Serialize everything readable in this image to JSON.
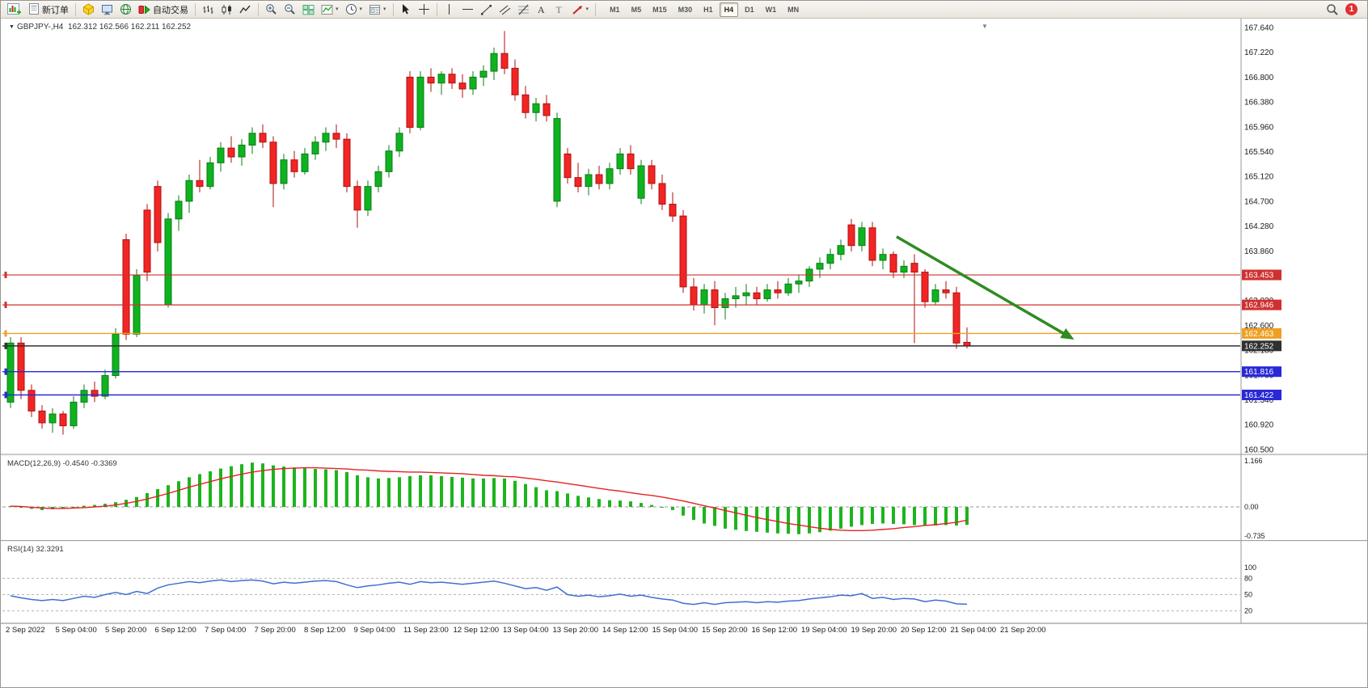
{
  "toolbar": {
    "new_order_label": "新订单",
    "autotrading_label": "自动交易",
    "timeframes": [
      "M1",
      "M5",
      "M15",
      "M30",
      "H1",
      "H4",
      "D1",
      "W1",
      "MN"
    ],
    "active_timeframe": "H4",
    "notification_count": "1"
  },
  "chart_header": {
    "symbol": "GBPJPY-,H4",
    "ohlc": "162.312 162.566 162.211 162.252"
  },
  "indicators": {
    "macd_name": "MACD(12,26,9)",
    "macd_values": "-0.4540 -0.3369",
    "rsi_name": "RSI(14)",
    "rsi_value": "32.3291"
  },
  "colors": {
    "bull": "#0eb31f",
    "bull_stroke": "#0a7d15",
    "bear": "#f22525",
    "bear_stroke": "#ae1010",
    "macd_hist": "#1db41d",
    "macd_signal": "#e42222",
    "rsi_line": "#3f6fd1",
    "arrow": "#2f8b22",
    "grid_text": "#1a1a1a",
    "level_dash": "#9a9a9a"
  },
  "chart_data": {
    "type": "candlestick",
    "symbol": "GBPJPY-",
    "timeframe": "H4",
    "price_axis": {
      "min": 160.5,
      "max": 167.64,
      "step": 0.42,
      "labels": [
        "167.640",
        "167.220",
        "166.800",
        "166.380",
        "165.960",
        "165.540",
        "165.120",
        "164.700",
        "164.280",
        "163.860",
        "163.440",
        "163.020",
        "162.600",
        "162.180",
        "161.760",
        "161.340",
        "160.920",
        "160.500"
      ]
    },
    "time_labels": [
      "2 Sep 2022",
      "5 Sep 04:00",
      "5 Sep 20:00",
      "6 Sep 12:00",
      "7 Sep 04:00",
      "7 Sep 20:00",
      "8 Sep 12:00",
      "9 Sep 04:00",
      "11 Sep 23:00",
      "12 Sep 12:00",
      "13 Sep 04:00",
      "13 Sep 20:00",
      "14 Sep 12:00",
      "15 Sep 04:00",
      "15 Sep 20:00",
      "16 Sep 12:00",
      "19 Sep 04:00",
      "19 Sep 20:00",
      "20 Sep 12:00",
      "21 Sep 04:00",
      "21 Sep 20:00"
    ],
    "candles": [
      [
        161.3,
        162.4,
        161.2,
        162.3
      ],
      [
        162.3,
        162.4,
        161.35,
        161.5
      ],
      [
        161.5,
        161.6,
        161.05,
        161.15
      ],
      [
        161.15,
        161.25,
        160.85,
        160.95
      ],
      [
        160.95,
        161.2,
        160.78,
        161.1
      ],
      [
        161.1,
        161.15,
        160.75,
        160.9
      ],
      [
        160.9,
        161.4,
        160.85,
        161.3
      ],
      [
        161.3,
        161.6,
        161.2,
        161.5
      ],
      [
        161.5,
        161.65,
        161.3,
        161.4
      ],
      [
        161.4,
        161.85,
        161.35,
        161.75
      ],
      [
        161.75,
        162.55,
        161.7,
        162.45
      ],
      [
        164.05,
        164.15,
        162.35,
        162.45
      ],
      [
        162.45,
        163.55,
        162.4,
        163.45
      ],
      [
        164.55,
        164.65,
        163.35,
        163.5
      ],
      [
        164.95,
        165.05,
        163.85,
        164.0
      ],
      [
        162.95,
        164.5,
        162.9,
        164.4
      ],
      [
        164.4,
        164.8,
        164.2,
        164.7
      ],
      [
        164.7,
        165.15,
        164.5,
        165.05
      ],
      [
        165.05,
        165.4,
        164.85,
        164.95
      ],
      [
        164.95,
        165.45,
        164.9,
        165.35
      ],
      [
        165.35,
        165.7,
        165.2,
        165.6
      ],
      [
        165.6,
        165.8,
        165.35,
        165.45
      ],
      [
        165.45,
        165.75,
        165.3,
        165.65
      ],
      [
        165.65,
        165.95,
        165.5,
        165.85
      ],
      [
        165.85,
        166.0,
        165.6,
        165.7
      ],
      [
        165.7,
        165.8,
        164.6,
        165.0
      ],
      [
        165.0,
        165.5,
        164.9,
        165.4
      ],
      [
        165.4,
        165.55,
        165.1,
        165.2
      ],
      [
        165.2,
        165.6,
        165.15,
        165.5
      ],
      [
        165.5,
        165.8,
        165.4,
        165.7
      ],
      [
        165.7,
        165.95,
        165.55,
        165.85
      ],
      [
        165.85,
        166.0,
        165.6,
        165.75
      ],
      [
        165.75,
        165.85,
        164.85,
        164.95
      ],
      [
        164.95,
        165.05,
        164.25,
        164.55
      ],
      [
        164.55,
        165.05,
        164.45,
        164.95
      ],
      [
        164.95,
        165.3,
        164.85,
        165.2
      ],
      [
        165.2,
        165.65,
        165.1,
        165.55
      ],
      [
        165.55,
        165.95,
        165.45,
        165.85
      ],
      [
        166.8,
        166.9,
        165.85,
        165.95
      ],
      [
        165.95,
        166.9,
        165.9,
        166.8
      ],
      [
        166.8,
        166.95,
        166.55,
        166.7
      ],
      [
        166.7,
        166.9,
        166.5,
        166.85
      ],
      [
        166.85,
        166.95,
        166.6,
        166.7
      ],
      [
        166.7,
        166.85,
        166.45,
        166.6
      ],
      [
        166.6,
        166.9,
        166.5,
        166.8
      ],
      [
        166.8,
        167.0,
        166.65,
        166.9
      ],
      [
        166.9,
        167.3,
        166.75,
        167.2
      ],
      [
        167.2,
        167.58,
        166.85,
        166.95
      ],
      [
        166.95,
        167.1,
        166.4,
        166.5
      ],
      [
        166.5,
        166.65,
        166.1,
        166.2
      ],
      [
        166.2,
        166.45,
        166.05,
        166.35
      ],
      [
        166.35,
        166.5,
        166.05,
        166.15
      ],
      [
        164.7,
        166.2,
        164.6,
        166.1
      ],
      [
        165.5,
        165.6,
        165.0,
        165.1
      ],
      [
        165.1,
        165.35,
        164.85,
        164.95
      ],
      [
        164.95,
        165.25,
        164.8,
        165.15
      ],
      [
        165.15,
        165.3,
        164.9,
        165.0
      ],
      [
        165.0,
        165.35,
        164.9,
        165.25
      ],
      [
        165.25,
        165.6,
        165.15,
        165.5
      ],
      [
        165.5,
        165.65,
        165.15,
        165.25
      ],
      [
        164.75,
        165.4,
        164.65,
        165.3
      ],
      [
        165.3,
        165.4,
        164.9,
        165.0
      ],
      [
        165.0,
        165.15,
        164.55,
        164.65
      ],
      [
        164.65,
        164.85,
        164.35,
        164.45
      ],
      [
        164.45,
        164.55,
        163.15,
        163.25
      ],
      [
        163.25,
        163.4,
        162.85,
        162.95
      ],
      [
        162.95,
        163.3,
        162.8,
        163.2
      ],
      [
        163.2,
        163.35,
        162.6,
        162.9
      ],
      [
        162.9,
        163.15,
        162.7,
        163.05
      ],
      [
        163.05,
        163.25,
        162.9,
        163.1
      ],
      [
        163.1,
        163.3,
        162.95,
        163.15
      ],
      [
        163.15,
        163.25,
        162.95,
        163.05
      ],
      [
        163.05,
        163.3,
        163.0,
        163.2
      ],
      [
        163.2,
        163.35,
        163.05,
        163.15
      ],
      [
        163.15,
        163.4,
        163.1,
        163.3
      ],
      [
        163.3,
        163.45,
        163.15,
        163.35
      ],
      [
        163.35,
        163.6,
        163.25,
        163.55
      ],
      [
        163.55,
        163.75,
        163.4,
        163.65
      ],
      [
        163.65,
        163.9,
        163.55,
        163.8
      ],
      [
        163.8,
        164.05,
        163.7,
        163.95
      ],
      [
        164.3,
        164.4,
        163.85,
        163.95
      ],
      [
        163.95,
        164.35,
        163.85,
        164.25
      ],
      [
        164.25,
        164.35,
        163.6,
        163.7
      ],
      [
        163.7,
        163.9,
        163.55,
        163.8
      ],
      [
        163.8,
        163.85,
        163.4,
        163.5
      ],
      [
        163.5,
        163.7,
        163.4,
        163.6
      ],
      [
        163.65,
        163.8,
        162.3,
        163.5
      ],
      [
        163.5,
        163.55,
        162.9,
        163.0
      ],
      [
        163.0,
        163.3,
        162.95,
        163.2
      ],
      [
        163.2,
        163.35,
        163.05,
        163.15
      ],
      [
        163.15,
        163.25,
        162.2,
        162.3
      ],
      [
        162.312,
        162.566,
        162.211,
        162.252
      ]
    ],
    "hlines": [
      {
        "price": 163.453,
        "label": "163.453",
        "color": "#d03030",
        "width": 1.2
      },
      {
        "price": 162.946,
        "label": "162.946",
        "color": "#d03030",
        "width": 1.2
      },
      {
        "price": 162.463,
        "label": "162.463",
        "color": "#efa023",
        "width": 1.4
      },
      {
        "price": 162.252,
        "label": "162.252",
        "color": "#303030",
        "width": 1.5
      },
      {
        "price": 161.816,
        "label": "161.816",
        "color": "#2929d8",
        "width": 1.4
      },
      {
        "price": 161.422,
        "label": "161.422",
        "color": "#2929d8",
        "width": 1.4
      }
    ],
    "current_price": 162.252,
    "trend_arrow": {
      "x1_index": 84.3,
      "price1": 164.1,
      "x2_index": 100.8,
      "price2": 162.4
    },
    "macd": {
      "axis_values": [
        1.166,
        0,
        -0.735
      ],
      "axis_labels": [
        "1.166",
        "0.00",
        "-0.735"
      ],
      "hist": [
        0.02,
        -0.02,
        -0.05,
        -0.08,
        -0.06,
        -0.04,
        0.0,
        0.03,
        0.05,
        0.08,
        0.12,
        0.18,
        0.25,
        0.35,
        0.45,
        0.55,
        0.65,
        0.75,
        0.83,
        0.9,
        0.97,
        1.03,
        1.08,
        1.12,
        1.1,
        1.05,
        1.02,
        1.0,
        0.98,
        0.96,
        0.95,
        0.93,
        0.88,
        0.8,
        0.75,
        0.72,
        0.73,
        0.75,
        0.78,
        0.8,
        0.8,
        0.78,
        0.76,
        0.74,
        0.72,
        0.72,
        0.73,
        0.72,
        0.66,
        0.58,
        0.5,
        0.42,
        0.4,
        0.34,
        0.28,
        0.24,
        0.2,
        0.17,
        0.16,
        0.14,
        0.1,
        0.05,
        0.0,
        -0.08,
        -0.22,
        -0.33,
        -0.42,
        -0.48,
        -0.55,
        -0.58,
        -0.61,
        -0.63,
        -0.65,
        -0.67,
        -0.68,
        -0.69,
        -0.67,
        -0.64,
        -0.6,
        -0.55,
        -0.5,
        -0.46,
        -0.43,
        -0.42,
        -0.43,
        -0.44,
        -0.46,
        -0.47,
        -0.47,
        -0.46,
        -0.47,
        -0.454
      ],
      "signal": [
        0.02,
        0.01,
        -0.01,
        -0.03,
        -0.04,
        -0.04,
        -0.03,
        -0.02,
        0.0,
        0.02,
        0.05,
        0.09,
        0.14,
        0.2,
        0.27,
        0.34,
        0.42,
        0.5,
        0.57,
        0.64,
        0.71,
        0.77,
        0.83,
        0.88,
        0.92,
        0.95,
        0.97,
        0.98,
        0.99,
        0.99,
        0.98,
        0.97,
        0.96,
        0.94,
        0.93,
        0.91,
        0.9,
        0.89,
        0.88,
        0.88,
        0.87,
        0.86,
        0.85,
        0.84,
        0.82,
        0.8,
        0.79,
        0.77,
        0.76,
        0.73,
        0.7,
        0.66,
        0.63,
        0.59,
        0.55,
        0.51,
        0.47,
        0.43,
        0.4,
        0.36,
        0.32,
        0.29,
        0.25,
        0.2,
        0.15,
        0.09,
        0.03,
        -0.03,
        -0.09,
        -0.15,
        -0.21,
        -0.27,
        -0.32,
        -0.37,
        -0.42,
        -0.46,
        -0.5,
        -0.54,
        -0.57,
        -0.59,
        -0.6,
        -0.6,
        -0.59,
        -0.57,
        -0.55,
        -0.52,
        -0.5,
        -0.47,
        -0.45,
        -0.42,
        -0.39,
        -0.3369
      ]
    },
    "rsi": {
      "axis_values": [
        100,
        80,
        50,
        20
      ],
      "axis_labels": [
        "100",
        "80",
        "50",
        "20"
      ],
      "levels": [
        80,
        50,
        20
      ],
      "values": [
        48,
        44,
        41,
        39,
        41,
        39,
        43,
        47,
        45,
        50,
        54,
        50,
        56,
        52,
        62,
        68,
        71,
        74,
        72,
        75,
        77,
        74,
        76,
        77,
        75,
        70,
        73,
        71,
        73,
        75,
        76,
        74,
        68,
        63,
        66,
        68,
        71,
        73,
        69,
        74,
        72,
        73,
        71,
        69,
        71,
        73,
        75,
        71,
        66,
        61,
        63,
        58,
        64,
        50,
        47,
        49,
        46,
        48,
        51,
        47,
        49,
        45,
        42,
        40,
        34,
        32,
        35,
        32,
        35,
        36,
        37,
        35,
        37,
        36,
        38,
        39,
        42,
        44,
        46,
        49,
        48,
        52,
        43,
        45,
        41,
        43,
        42,
        37,
        40,
        38,
        33,
        32.33
      ]
    }
  }
}
